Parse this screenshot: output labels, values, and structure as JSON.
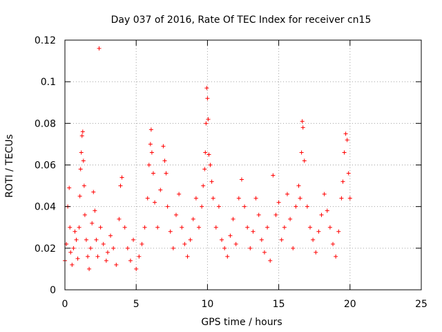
{
  "chart_data": {
    "type": "scatter",
    "title": "Day 037 of 2016, Rate Of TEC Index for receiver cn15",
    "xlabel": "GPS time / hours",
    "ylabel": "ROTI / TECUs",
    "xlim": [
      0,
      25
    ],
    "ylim": [
      0,
      0.12
    ],
    "xticks": [
      "0",
      "5",
      "10",
      "15",
      "20",
      "25"
    ],
    "yticks": [
      "0",
      "0.02",
      "0.04",
      "0.06",
      "0.08",
      "0.1",
      "0.12"
    ],
    "grid": true,
    "marker": "+",
    "color": "#ff0000",
    "series": [
      {
        "x": [
          0.0,
          0.1,
          0.2,
          0.3,
          0.35,
          0.4,
          0.5,
          0.6,
          0.7,
          0.8,
          0.9,
          1.0,
          1.05,
          1.1,
          1.15,
          1.2,
          1.25,
          1.3,
          1.35,
          1.4,
          1.5,
          1.6,
          1.7,
          1.8,
          1.9,
          2.0,
          2.1,
          2.2,
          2.3,
          2.4,
          2.5,
          2.7,
          2.9,
          3.0,
          3.2,
          3.4,
          3.6,
          3.8,
          3.9,
          4.0,
          4.2,
          4.4,
          4.6,
          4.8,
          5.0,
          5.2,
          5.4,
          5.6,
          5.8,
          5.9,
          6.0,
          6.05,
          6.1,
          6.2,
          6.3,
          6.5,
          6.7,
          6.9,
          7.0,
          7.1,
          7.2,
          7.4,
          7.6,
          7.8,
          8.0,
          8.2,
          8.4,
          8.6,
          8.8,
          9.0,
          9.2,
          9.4,
          9.6,
          9.7,
          9.8,
          9.85,
          9.9,
          9.95,
          10.0,
          10.05,
          10.1,
          10.2,
          10.3,
          10.4,
          10.6,
          10.8,
          11.0,
          11.2,
          11.4,
          11.6,
          11.8,
          12.0,
          12.2,
          12.4,
          12.6,
          12.8,
          13.0,
          13.2,
          13.4,
          13.6,
          13.8,
          14.0,
          14.2,
          14.4,
          14.6,
          14.8,
          15.0,
          15.2,
          15.4,
          15.6,
          15.8,
          16.0,
          16.2,
          16.4,
          16.5,
          16.6,
          16.65,
          16.7,
          16.8,
          17.0,
          17.2,
          17.4,
          17.6,
          17.8,
          18.0,
          18.2,
          18.4,
          18.6,
          18.8,
          19.0,
          19.2,
          19.4,
          19.5,
          19.6,
          19.7,
          19.8,
          19.9,
          20.0
        ],
        "y": [
          0.014,
          0.022,
          0.04,
          0.049,
          0.03,
          0.018,
          0.012,
          0.02,
          0.028,
          0.024,
          0.015,
          0.03,
          0.045,
          0.058,
          0.066,
          0.074,
          0.076,
          0.062,
          0.05,
          0.036,
          0.024,
          0.016,
          0.01,
          0.02,
          0.032,
          0.047,
          0.038,
          0.024,
          0.016,
          0.116,
          0.03,
          0.022,
          0.014,
          0.018,
          0.026,
          0.02,
          0.012,
          0.034,
          0.05,
          0.054,
          0.03,
          0.02,
          0.014,
          0.024,
          0.01,
          0.016,
          0.022,
          0.03,
          0.044,
          0.06,
          0.07,
          0.077,
          0.066,
          0.056,
          0.042,
          0.03,
          0.048,
          0.069,
          0.062,
          0.056,
          0.04,
          0.028,
          0.02,
          0.036,
          0.046,
          0.03,
          0.022,
          0.016,
          0.024,
          0.034,
          0.044,
          0.03,
          0.04,
          0.05,
          0.058,
          0.066,
          0.08,
          0.097,
          0.092,
          0.082,
          0.065,
          0.06,
          0.052,
          0.044,
          0.03,
          0.04,
          0.024,
          0.02,
          0.016,
          0.026,
          0.034,
          0.022,
          0.044,
          0.053,
          0.04,
          0.03,
          0.02,
          0.028,
          0.044,
          0.036,
          0.024,
          0.018,
          0.03,
          0.014,
          0.055,
          0.036,
          0.042,
          0.024,
          0.03,
          0.046,
          0.034,
          0.02,
          0.04,
          0.05,
          0.044,
          0.066,
          0.081,
          0.078,
          0.062,
          0.04,
          0.03,
          0.024,
          0.018,
          0.028,
          0.036,
          0.046,
          0.038,
          0.03,
          0.022,
          0.016,
          0.028,
          0.044,
          0.052,
          0.066,
          0.075,
          0.072,
          0.056,
          0.044
        ]
      }
    ]
  }
}
